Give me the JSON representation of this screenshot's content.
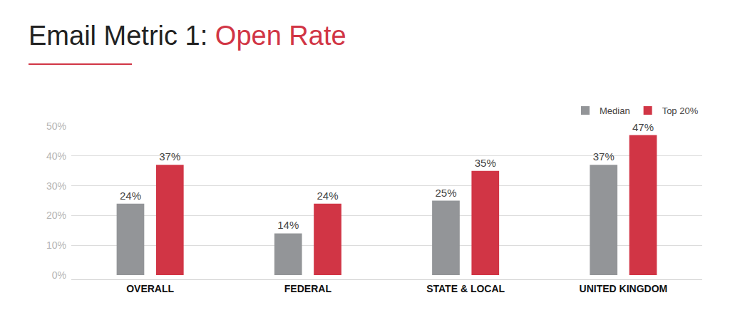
{
  "chart_data": {
    "type": "bar",
    "title": "Email Metric 1: Open Rate",
    "categories": [
      "OVERALL",
      "FEDERAL",
      "STATE & LOCAL",
      "UNITED KINGDOM"
    ],
    "series": [
      {
        "name": "Median",
        "color": "#939598",
        "values": [
          24,
          14,
          25,
          37
        ],
        "value_labels": [
          "24%",
          "14%",
          "25%",
          "37%"
        ]
      },
      {
        "name": "Top 20%",
        "color": "#d13545",
        "values": [
          37,
          24,
          35,
          47
        ],
        "value_labels": [
          "37%",
          "24%",
          "35%",
          "47%"
        ]
      }
    ],
    "ylim": [
      0,
      50
    ],
    "yticks": [
      {
        "value": 0,
        "label": "0%"
      },
      {
        "value": 10,
        "label": "10%"
      },
      {
        "value": 20,
        "label": "20%"
      },
      {
        "value": 30,
        "label": "30%"
      },
      {
        "value": 40,
        "label": "40%"
      },
      {
        "value": 50,
        "label": "50%"
      }
    ],
    "grid": true,
    "legend": "upper right",
    "data_labels": true
  }
}
